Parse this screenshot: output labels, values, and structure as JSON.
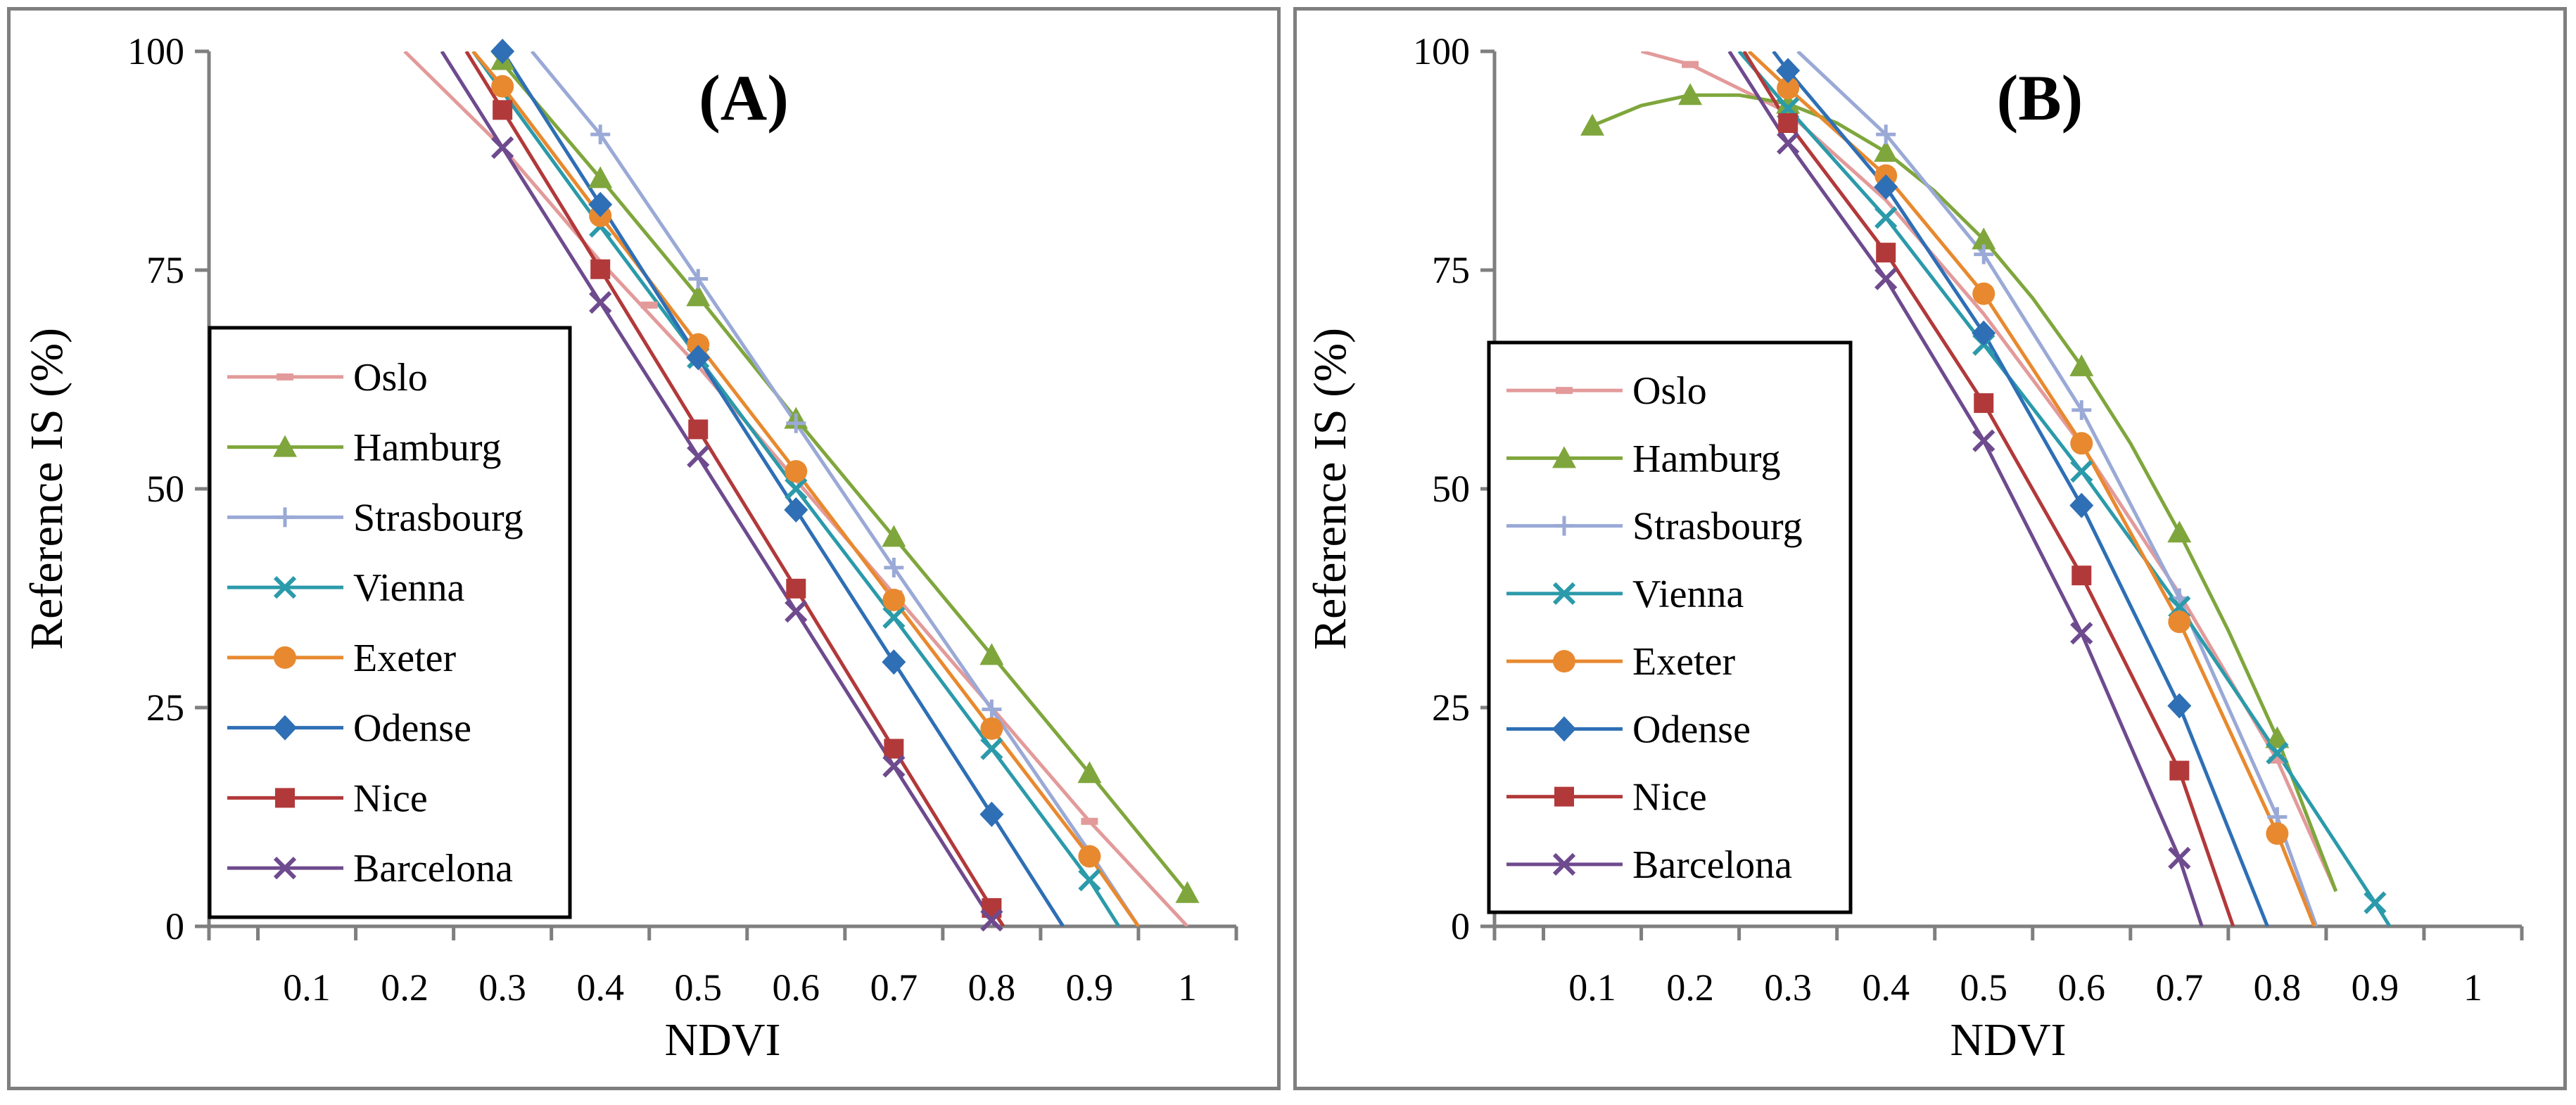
{
  "chart_data": [
    {
      "type": "line",
      "title": "(A)",
      "xlabel": "NDVI",
      "ylabel": "Reference IS (%)",
      "xlim": [
        0,
        1.05
      ],
      "ylim": [
        0,
        100
      ],
      "xticks": [
        "0.1",
        "0.2",
        "0.3",
        "0.4",
        "0.5",
        "0.6",
        "0.7",
        "0.8",
        "0.9",
        "1"
      ],
      "yticks": [
        "0",
        "25",
        "50",
        "75",
        "100"
      ],
      "grid": false,
      "legend_position": "bottom-left",
      "series": [
        {
          "name": "Oslo",
          "color": "#e39a9a",
          "marker": "dash",
          "points": [
            [
              0.45,
              71
            ],
            [
              0.7,
              38
            ],
            [
              0.9,
              12
            ]
          ],
          "line": [
            [
              0.2,
              100
            ],
            [
              0.3,
              89
            ],
            [
              0.4,
              76
            ],
            [
              0.5,
              64
            ],
            [
              0.6,
              51
            ],
            [
              0.7,
              38
            ],
            [
              0.8,
              25
            ],
            [
              0.9,
              12
            ],
            [
              1.0,
              0
            ]
          ]
        },
        {
          "name": "Hamburg",
          "color": "#7fa63c",
          "marker": "triangle",
          "points": [
            [
              0.3,
              99
            ],
            [
              0.4,
              85.5
            ],
            [
              0.5,
              72
            ],
            [
              0.6,
              58
            ],
            [
              0.7,
              44.5
            ],
            [
              0.8,
              31
            ],
            [
              0.9,
              17.5
            ],
            [
              1.0,
              3.8
            ]
          ],
          "line": [
            [
              0.29,
              100
            ],
            [
              0.4,
              85.5
            ],
            [
              0.5,
              72
            ],
            [
              0.6,
              58
            ],
            [
              0.7,
              44.5
            ],
            [
              0.8,
              31
            ],
            [
              0.9,
              17.5
            ],
            [
              1.0,
              3.8
            ]
          ]
        },
        {
          "name": "Strasbourg",
          "color": "#9aa9d6",
          "marker": "plus",
          "points": [
            [
              0.4,
              90.5
            ],
            [
              0.5,
              74
            ],
            [
              0.6,
              57.5
            ],
            [
              0.7,
              41
            ],
            [
              0.8,
              24.8
            ]
          ],
          "line": [
            [
              0.33,
              100
            ],
            [
              0.4,
              90.5
            ],
            [
              0.5,
              74
            ],
            [
              0.6,
              57.5
            ],
            [
              0.7,
              41
            ],
            [
              0.8,
              24.8
            ],
            [
              0.9,
              8.5
            ],
            [
              0.95,
              0
            ]
          ]
        },
        {
          "name": "Vienna",
          "color": "#2b9aaa",
          "marker": "x",
          "points": [
            [
              0.4,
              80
            ],
            [
              0.5,
              65
            ],
            [
              0.6,
              50
            ],
            [
              0.7,
              35.3
            ],
            [
              0.8,
              20.3
            ],
            [
              0.9,
              5.3
            ]
          ],
          "line": [
            [
              0.27,
              100
            ],
            [
              0.4,
              80
            ],
            [
              0.5,
              65
            ],
            [
              0.6,
              50
            ],
            [
              0.7,
              35.3
            ],
            [
              0.8,
              20.3
            ],
            [
              0.9,
              5.3
            ],
            [
              0.93,
              0
            ]
          ]
        },
        {
          "name": "Exeter",
          "color": "#e8892f",
          "marker": "circle",
          "points": [
            [
              0.3,
              96
            ],
            [
              0.4,
              81.2
            ],
            [
              0.5,
              66.5
            ],
            [
              0.6,
              52
            ],
            [
              0.7,
              37.3
            ],
            [
              0.8,
              22.6
            ],
            [
              0.9,
              8
            ]
          ],
          "line": [
            [
              0.27,
              100
            ],
            [
              0.3,
              96
            ],
            [
              0.4,
              81.2
            ],
            [
              0.5,
              66.5
            ],
            [
              0.6,
              52
            ],
            [
              0.7,
              37.3
            ],
            [
              0.8,
              22.6
            ],
            [
              0.9,
              8
            ],
            [
              0.95,
              0
            ]
          ]
        },
        {
          "name": "Odense",
          "color": "#2e6fb5",
          "marker": "diamond",
          "points": [
            [
              0.3,
              100
            ],
            [
              0.4,
              82.5
            ],
            [
              0.5,
              65
            ],
            [
              0.6,
              47.6
            ],
            [
              0.7,
              30.2
            ],
            [
              0.8,
              12.8
            ]
          ],
          "line": [
            [
              0.3,
              100
            ],
            [
              0.4,
              82.5
            ],
            [
              0.5,
              65
            ],
            [
              0.6,
              47.6
            ],
            [
              0.7,
              30.2
            ],
            [
              0.8,
              12.8
            ],
            [
              0.873,
              0
            ]
          ]
        },
        {
          "name": "Nice",
          "color": "#b2393a",
          "marker": "square",
          "points": [
            [
              0.3,
              93.3
            ],
            [
              0.4,
              75.1
            ],
            [
              0.5,
              56.8
            ],
            [
              0.6,
              38.6
            ],
            [
              0.7,
              20.3
            ],
            [
              0.8,
              2.1
            ]
          ],
          "line": [
            [
              0.263,
              100
            ],
            [
              0.3,
              93.3
            ],
            [
              0.4,
              75.1
            ],
            [
              0.5,
              56.8
            ],
            [
              0.6,
              38.6
            ],
            [
              0.7,
              20.3
            ],
            [
              0.8,
              2.1
            ],
            [
              0.812,
              0
            ]
          ]
        },
        {
          "name": "Barcelona",
          "color": "#6e4a8e",
          "marker": "x",
          "points": [
            [
              0.3,
              89
            ],
            [
              0.4,
              71.3
            ],
            [
              0.5,
              53.7
            ],
            [
              0.6,
              36
            ],
            [
              0.7,
              18.3
            ],
            [
              0.8,
              0.7
            ]
          ],
          "line": [
            [
              0.238,
              100
            ],
            [
              0.3,
              89
            ],
            [
              0.4,
              71.3
            ],
            [
              0.5,
              53.7
            ],
            [
              0.6,
              36
            ],
            [
              0.7,
              18.3
            ],
            [
              0.8,
              0.7
            ],
            [
              0.804,
              0
            ]
          ]
        }
      ]
    },
    {
      "type": "line",
      "title": "(B)",
      "xlabel": "NDVI",
      "ylabel": "Reference IS (%)",
      "xlim": [
        0,
        1.05
      ],
      "ylim": [
        0,
        100
      ],
      "xticks": [
        "0.1",
        "0.2",
        "0.3",
        "0.4",
        "0.5",
        "0.6",
        "0.7",
        "0.8",
        "0.9",
        "1"
      ],
      "yticks": [
        "0",
        "25",
        "50",
        "75",
        "100"
      ],
      "grid": false,
      "legend_position": "bottom-left",
      "series": [
        {
          "name": "Oslo",
          "color": "#e39a9a",
          "marker": "dash",
          "points": [
            [
              0.2,
              98.5
            ],
            [
              0.8,
              19
            ]
          ],
          "line": [
            [
              0.15,
              100
            ],
            [
              0.2,
              98.5
            ],
            [
              0.3,
              93
            ],
            [
              0.4,
              83
            ],
            [
              0.5,
              70
            ],
            [
              0.6,
              55
            ],
            [
              0.7,
              38
            ],
            [
              0.8,
              19
            ],
            [
              0.86,
              4
            ]
          ]
        },
        {
          "name": "Hamburg",
          "color": "#7fa63c",
          "marker": "triangle",
          "points": [
            [
              0.1,
              91.5
            ],
            [
              0.2,
              95
            ],
            [
              0.3,
              94
            ],
            [
              0.4,
              88.5
            ],
            [
              0.5,
              78.5
            ],
            [
              0.6,
              64
            ],
            [
              0.7,
              45
            ],
            [
              0.8,
              21.5
            ]
          ],
          "line": [
            [
              0.1,
              91.5
            ],
            [
              0.15,
              93.8
            ],
            [
              0.2,
              95
            ],
            [
              0.25,
              95
            ],
            [
              0.3,
              94
            ],
            [
              0.35,
              91.8
            ],
            [
              0.4,
              88.5
            ],
            [
              0.45,
              84
            ],
            [
              0.5,
              78.5
            ],
            [
              0.55,
              71.8
            ],
            [
              0.6,
              64
            ],
            [
              0.65,
              55.2
            ],
            [
              0.7,
              45
            ],
            [
              0.75,
              33.8
            ],
            [
              0.8,
              21.5
            ],
            [
              0.86,
              4
            ]
          ]
        },
        {
          "name": "Strasbourg",
          "color": "#9aa9d6",
          "marker": "plus",
          "points": [
            [
              0.4,
              90.5
            ],
            [
              0.5,
              76.8
            ],
            [
              0.6,
              59
            ],
            [
              0.7,
              37.5
            ],
            [
              0.8,
              12.5
            ]
          ],
          "line": [
            [
              0.31,
              100
            ],
            [
              0.4,
              90.5
            ],
            [
              0.5,
              76.8
            ],
            [
              0.6,
              59
            ],
            [
              0.7,
              37.5
            ],
            [
              0.8,
              12.5
            ],
            [
              0.84,
              0
            ]
          ]
        },
        {
          "name": "Vienna",
          "color": "#2b9aaa",
          "marker": "x",
          "points": [
            [
              0.3,
              93.5
            ],
            [
              0.4,
              81
            ],
            [
              0.5,
              66.5
            ],
            [
              0.6,
              52
            ],
            [
              0.7,
              36.5
            ],
            [
              0.8,
              19.8
            ],
            [
              0.9,
              2.7
            ]
          ],
          "line": [
            [
              0.25,
              100
            ],
            [
              0.3,
              93.5
            ],
            [
              0.4,
              81
            ],
            [
              0.5,
              66.5
            ],
            [
              0.6,
              52
            ],
            [
              0.7,
              36.5
            ],
            [
              0.8,
              19.8
            ],
            [
              0.9,
              2.7
            ],
            [
              0.915,
              0
            ]
          ]
        },
        {
          "name": "Exeter",
          "color": "#e8892f",
          "marker": "circle",
          "points": [
            [
              0.3,
              95.8
            ],
            [
              0.4,
              85.8
            ],
            [
              0.5,
              72.3
            ],
            [
              0.6,
              55.2
            ],
            [
              0.7,
              34.8
            ],
            [
              0.8,
              10.6
            ]
          ],
          "line": [
            [
              0.26,
              100
            ],
            [
              0.3,
              95.8
            ],
            [
              0.4,
              85.8
            ],
            [
              0.5,
              72.3
            ],
            [
              0.6,
              55.2
            ],
            [
              0.7,
              34.8
            ],
            [
              0.8,
              10.6
            ],
            [
              0.838,
              0
            ]
          ]
        },
        {
          "name": "Odense",
          "color": "#2e6fb5",
          "marker": "diamond",
          "points": [
            [
              0.3,
              97.8
            ],
            [
              0.4,
              84.5
            ],
            [
              0.5,
              67.8
            ],
            [
              0.6,
              48.1
            ],
            [
              0.7,
              25.2
            ]
          ],
          "line": [
            [
              0.285,
              100
            ],
            [
              0.3,
              97.8
            ],
            [
              0.4,
              84.5
            ],
            [
              0.5,
              67.8
            ],
            [
              0.6,
              48.1
            ],
            [
              0.7,
              25.2
            ],
            [
              0.79,
              0
            ]
          ]
        },
        {
          "name": "Nice",
          "color": "#b2393a",
          "marker": "square",
          "points": [
            [
              0.3,
              91.8
            ],
            [
              0.4,
              77
            ],
            [
              0.5,
              59.8
            ],
            [
              0.6,
              40.1
            ],
            [
              0.7,
              17.8
            ]
          ],
          "line": [
            [
              0.255,
              100
            ],
            [
              0.3,
              91.8
            ],
            [
              0.4,
              77
            ],
            [
              0.5,
              59.8
            ],
            [
              0.6,
              40.1
            ],
            [
              0.7,
              17.8
            ],
            [
              0.755,
              0
            ]
          ]
        },
        {
          "name": "Barcelona",
          "color": "#6e4a8e",
          "marker": "x",
          "points": [
            [
              0.3,
              89.5
            ],
            [
              0.4,
              74
            ],
            [
              0.5,
              55.5
            ],
            [
              0.6,
              33.5
            ],
            [
              0.7,
              7.8
            ]
          ],
          "line": [
            [
              0.24,
              100
            ],
            [
              0.3,
              89.5
            ],
            [
              0.4,
              74
            ],
            [
              0.5,
              55.5
            ],
            [
              0.6,
              33.5
            ],
            [
              0.7,
              7.8
            ],
            [
              0.723,
              0
            ]
          ]
        }
      ]
    }
  ]
}
